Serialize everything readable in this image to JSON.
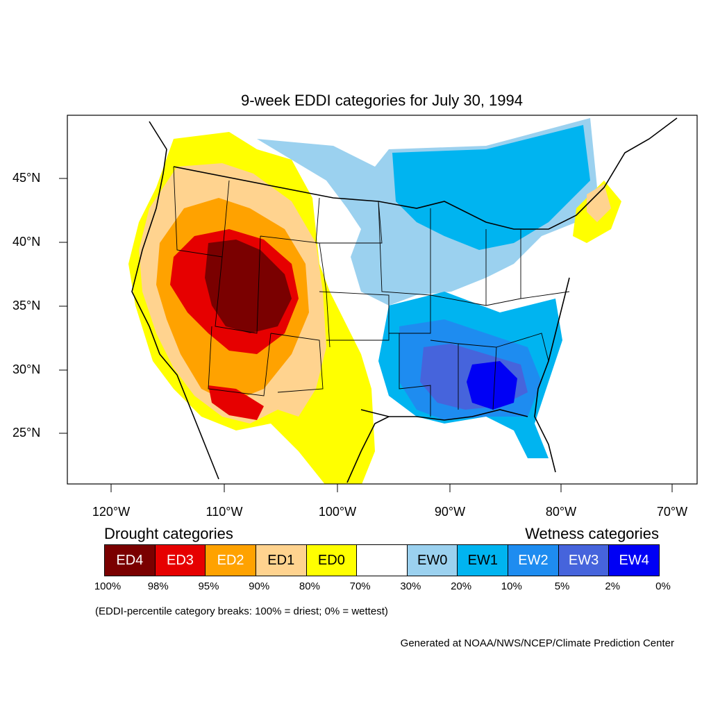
{
  "title": "9-week EDDI categories for July 30, 1994",
  "axes": {
    "longitude_labels": [
      "120°W",
      "110°W",
      "100°W",
      "90°W",
      "80°W",
      "70°W"
    ],
    "latitude_labels": [
      "45°N",
      "40°N",
      "35°N",
      "30°N",
      "25°N"
    ]
  },
  "legend": {
    "drought_title": "Drought categories",
    "wetness_title": "Wetness categories",
    "categories": [
      {
        "label": "ED4",
        "color": "#7a0000",
        "text_color": "#ffffff"
      },
      {
        "label": "ED3",
        "color": "#e60000",
        "text_color": "#ffffff"
      },
      {
        "label": "ED2",
        "color": "#ffa200",
        "text_color": "#ffffff"
      },
      {
        "label": "ED1",
        "color": "#ffd38f",
        "text_color": "#000000"
      },
      {
        "label": "ED0",
        "color": "#ffff00",
        "text_color": "#000000"
      },
      {
        "label": "",
        "color": "#ffffff",
        "text_color": "#000000"
      },
      {
        "label": "EW0",
        "color": "#9bd1ef",
        "text_color": "#000000"
      },
      {
        "label": "EW1",
        "color": "#00b4f0",
        "text_color": "#000000"
      },
      {
        "label": "EW2",
        "color": "#1e8cf0",
        "text_color": "#ffffff"
      },
      {
        "label": "EW3",
        "color": "#4664dc",
        "text_color": "#ffffff"
      },
      {
        "label": "EW4",
        "color": "#0000f5",
        "text_color": "#ffffff"
      }
    ],
    "breaks": [
      "100%",
      "98%",
      "95%",
      "90%",
      "80%",
      "70%",
      "30%",
      "20%",
      "10%",
      "5%",
      "2%",
      "0%"
    ]
  },
  "note": "(EDDI-percentile category breaks: 100% = driest; 0% = wettest)",
  "credit": "Generated at NOAA/NWS/NCEP/Climate Prediction Center"
}
